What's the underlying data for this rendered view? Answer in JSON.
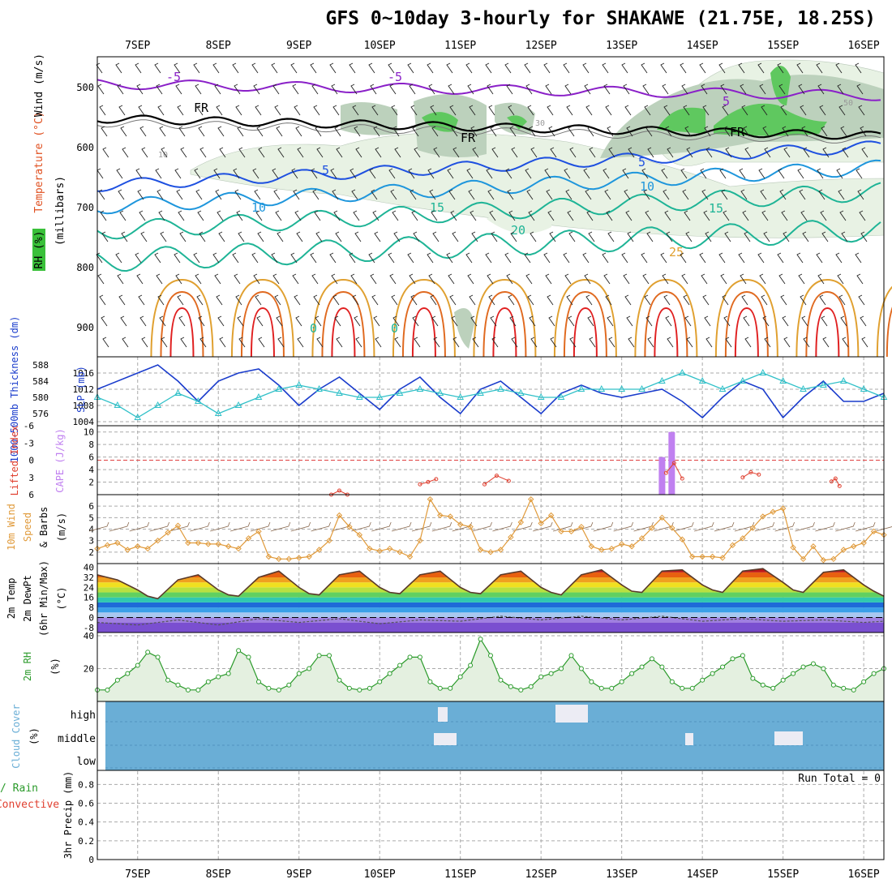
{
  "title": "GFS 0~10day 3-hourly for SHAKAWE (21.75E, 18.25S)",
  "date_labels": [
    "7SEP",
    "8SEP",
    "9SEP",
    "10SEP",
    "11SEP",
    "12SEP",
    "13SEP",
    "14SEP",
    "15SEP",
    "16SEP"
  ],
  "colors": {
    "rh_shade_light": "#e8f2e4",
    "rh_shade_mid": "#bcd1bc",
    "rh_shade_dark": "#8fc88f",
    "rh_shade_bright": "#5fc85f",
    "cloud_bg": "#6aaed6",
    "cloud_bar": "#ececf4",
    "cape_bar": "#c080f0",
    "lifted_index": "#e04030",
    "sfc_wind": "#e09a3a",
    "slp": "#1a3ccc",
    "thickness": "#30c0c8",
    "temp_minus5": "#8a20c8",
    "temp_0": "#000000",
    "temp_5": "#1e50e0",
    "temp_10": "#1e96dc",
    "temp_15": "#1eb496",
    "temp_20": "#1eb496",
    "temp_25": "#e0a030",
    "temp_30": "#e06a20",
    "temp_35": "#e02020",
    "rh_curve": "#2a9a2a"
  },
  "chart_data": [
    {
      "type": "area",
      "panel": "upper-air cross-section",
      "ylabel_parts": [
        "RH (%)",
        "Temperature (°C)",
        "Wind (m/s)"
      ],
      "yaxis_label": "(millibars)",
      "yticks": [
        500,
        600,
        700,
        800,
        900
      ],
      "ylim": [
        450,
        950
      ],
      "contour_labels": [
        "-5",
        "-5",
        "5",
        "FR",
        "FR",
        "FR",
        "5",
        "5",
        "10",
        "10",
        "15",
        "15",
        "20",
        "25",
        "0",
        "0"
      ],
      "rh_labels": [
        "10",
        "30",
        "50"
      ],
      "freezing_level_mb": [
        550,
        555,
        575,
        580,
        580,
        580,
        580,
        585,
        580,
        575,
        575,
        575,
        575,
        572,
        570,
        570,
        575
      ]
    },
    {
      "type": "line",
      "panel": "pressure",
      "ylabel_left": "1000-500mb Thickness (dm)",
      "ylabel_right": "SLP (mb)",
      "thickness_ticks": [
        576,
        580,
        584,
        588
      ],
      "slp_ticks": [
        1004,
        1008,
        1012,
        1016
      ],
      "series": [
        {
          "name": "SLP (mb)",
          "x_day": [
            6.5,
            7.0,
            7.25,
            7.5,
            7.75,
            8.0,
            8.25,
            8.5,
            8.75,
            9.0,
            9.25,
            9.5,
            9.75,
            10.0,
            10.25,
            10.5,
            10.75,
            11.0,
            11.25,
            11.5,
            11.75,
            12.0,
            12.25,
            12.5,
            12.75,
            13.0,
            13.25,
            13.5,
            13.75,
            14.0,
            14.25,
            14.5,
            14.75,
            15.0,
            15.25,
            15.5,
            15.75,
            16.0,
            16.25
          ],
          "values": [
            1012,
            1016,
            1018,
            1014,
            1009,
            1014,
            1016,
            1017,
            1013,
            1008,
            1012,
            1015,
            1011,
            1007,
            1012,
            1015,
            1010,
            1006,
            1012,
            1014,
            1010,
            1006,
            1011,
            1013,
            1011,
            1010,
            1011,
            1012,
            1009,
            1005,
            1010,
            1014,
            1012,
            1005,
            1010,
            1014,
            1009,
            1009,
            1011
          ]
        },
        {
          "name": "1000-500mb Thickness (dm)",
          "x_day": [
            6.5,
            6.75,
            7.0,
            7.25,
            7.5,
            7.75,
            8.0,
            8.25,
            8.5,
            8.75,
            9.0,
            9.25,
            9.5,
            9.75,
            10.0,
            10.25,
            10.5,
            10.75,
            11.0,
            11.25,
            11.5,
            11.75,
            12.0,
            12.25,
            12.5,
            12.75,
            13.0,
            13.25,
            13.5,
            13.75,
            14.0,
            14.25,
            14.5,
            14.75,
            15.0,
            15.25,
            15.5,
            15.75,
            16.0,
            16.25
          ],
          "values": [
            580,
            578,
            575,
            578,
            581,
            579,
            576,
            578,
            580,
            582,
            583,
            582,
            581,
            580,
            580,
            581,
            582,
            581,
            580,
            581,
            582,
            581,
            580,
            580,
            582,
            582,
            582,
            582,
            584,
            586,
            584,
            582,
            584,
            586,
            584,
            582,
            583,
            584,
            582,
            580
          ]
        }
      ]
    },
    {
      "type": "bar",
      "panel": "stability",
      "ylabel_left": "Lifted Index",
      "ylabel_right": "CAPE (J/kg)",
      "li_ticks": [
        6,
        3,
        0,
        -3,
        -6
      ],
      "cape_ticks": [
        2,
        4,
        6,
        8,
        10
      ],
      "series": [
        {
          "name": "CAPE (J/kg)",
          "x_day": [
            13.5,
            13.62
          ],
          "values": [
            6,
            10
          ]
        },
        {
          "name": "Lifted Index",
          "x_day": [
            9.4,
            9.5,
            9.6,
            10.5,
            10.6,
            10.7,
            11.3,
            11.45,
            11.6,
            13.55,
            13.65,
            13.75,
            14.5,
            14.6,
            14.7,
            15.6,
            15.65,
            15.7
          ],
          "values": [
            6,
            5.3,
            6,
            4.2,
            3.8,
            3.3,
            4.2,
            2.7,
            3.6,
            2.2,
            0.5,
            3.2,
            3.0,
            2.1,
            2.5,
            3.7,
            3.2,
            4.5
          ]
        }
      ]
    },
    {
      "type": "line",
      "panel": "surface-wind",
      "ylabel_parts": [
        "10m Wind",
        "Speed",
        "& Barbs",
        "(m/s)"
      ],
      "yticks": [
        2,
        3,
        4,
        5,
        6
      ],
      "series": [
        {
          "name": "10m Wind Speed",
          "x_day": [
            6.5,
            6.625,
            6.75,
            6.875,
            7.0,
            7.125,
            7.25,
            7.375,
            7.5,
            7.625,
            7.75,
            7.875,
            8.0,
            8.125,
            8.25,
            8.375,
            8.5,
            8.625,
            8.75,
            8.875,
            9.0,
            9.125,
            9.25,
            9.375,
            9.5,
            9.625,
            9.75,
            9.875,
            10.0,
            10.125,
            10.25,
            10.375,
            10.5,
            10.625,
            10.75,
            10.875,
            11.0,
            11.125,
            11.25,
            11.375,
            11.5,
            11.625,
            11.75,
            11.875,
            12.0,
            12.125,
            12.25,
            12.375,
            12.5,
            12.625,
            12.75,
            12.875,
            13.0,
            13.125,
            13.25,
            13.375,
            13.5,
            13.625,
            13.75,
            13.875,
            14.0,
            14.125,
            14.25,
            14.375,
            14.5,
            14.625,
            14.75,
            14.875,
            15.0,
            15.125,
            15.25,
            15.375,
            15.5,
            15.625,
            15.75,
            15.875,
            16.0,
            16.125,
            16.25
          ],
          "values": [
            2.3,
            2.6,
            2.8,
            2.2,
            2.5,
            2.3,
            3.0,
            3.7,
            4.3,
            2.8,
            2.8,
            2.7,
            2.7,
            2.5,
            2.3,
            3.2,
            3.8,
            1.6,
            1.4,
            1.4,
            1.5,
            1.6,
            2.2,
            3.0,
            5.2,
            4.2,
            3.5,
            2.3,
            2.1,
            2.3,
            2.0,
            1.6,
            3.0,
            6.6,
            5.2,
            5.1,
            4.4,
            4.2,
            2.2,
            2.0,
            2.2,
            3.3,
            4.6,
            6.6,
            4.5,
            5.2,
            3.8,
            3.8,
            4.2,
            2.5,
            2.2,
            2.3,
            2.7,
            2.5,
            3.2,
            4.1,
            5.0,
            4.1,
            3.1,
            1.6,
            1.6,
            1.6,
            1.5,
            2.6,
            3.2,
            4.1,
            5.1,
            5.5,
            5.8,
            2.4,
            1.4,
            2.5,
            1.3,
            1.4,
            2.2,
            2.5,
            2.8,
            3.8,
            3.5
          ]
        }
      ]
    },
    {
      "type": "area",
      "panel": "surface-temperature",
      "ylabel_parts": [
        "2m Temp",
        "2m DewPt",
        "(6hr Min/Max)",
        "(°C)"
      ],
      "yticks": [
        -8,
        0,
        8,
        16,
        24,
        32,
        40
      ],
      "series": [
        {
          "name": "2m Temp",
          "x_day": [
            6.5,
            6.75,
            7.0,
            7.125,
            7.25,
            7.5,
            7.75,
            8.0,
            8.125,
            8.25,
            8.5,
            8.75,
            9.0,
            9.125,
            9.25,
            9.5,
            9.75,
            10.0,
            10.125,
            10.25,
            10.5,
            10.75,
            11.0,
            11.125,
            11.25,
            11.5,
            11.75,
            12.0,
            12.125,
            12.25,
            12.5,
            12.75,
            13.0,
            13.125,
            13.25,
            13.5,
            13.75,
            14.0,
            14.125,
            14.25,
            14.5,
            14.75,
            15.0,
            15.125,
            15.25,
            15.5,
            15.75,
            16.0,
            16.125,
            16.25
          ],
          "values": [
            34,
            30,
            22,
            17,
            15,
            30,
            34,
            22,
            18,
            17,
            32,
            37,
            24,
            19,
            18,
            34,
            37,
            24,
            20,
            19,
            34,
            37,
            24,
            20,
            19,
            34,
            37,
            24,
            20,
            18,
            34,
            38,
            26,
            21,
            20,
            37,
            38,
            26,
            22,
            20,
            37,
            39,
            28,
            22,
            20,
            36,
            38,
            26,
            21,
            17
          ]
        },
        {
          "name": "2m DewPt",
          "x_day": [
            6.5,
            7.0,
            7.5,
            8.0,
            8.5,
            9.0,
            9.5,
            10.0,
            10.5,
            11.0,
            11.5,
            12.0,
            12.5,
            13.0,
            13.5,
            14.0,
            14.5,
            15.0,
            15.5,
            16.0,
            16.25
          ],
          "values": [
            -4,
            -6,
            -2,
            -6,
            -1,
            -4,
            -1,
            -5,
            -2,
            -3,
            1,
            -2,
            1,
            -2,
            1,
            -3,
            -1,
            -3,
            -2,
            -4,
            -3
          ]
        }
      ]
    },
    {
      "type": "area",
      "panel": "surface-rh",
      "ylabel_parts": [
        "2m RH",
        "(%)"
      ],
      "yticks": [
        20,
        40
      ],
      "series": [
        {
          "name": "2m RH",
          "x_day": [
            6.5,
            6.625,
            6.75,
            6.875,
            7.0,
            7.125,
            7.25,
            7.375,
            7.5,
            7.625,
            7.75,
            7.875,
            8.0,
            8.125,
            8.25,
            8.375,
            8.5,
            8.625,
            8.75,
            8.875,
            9.0,
            9.125,
            9.25,
            9.375,
            9.5,
            9.625,
            9.75,
            9.875,
            10.0,
            10.125,
            10.25,
            10.375,
            10.5,
            10.625,
            10.75,
            10.875,
            11.0,
            11.125,
            11.25,
            11.375,
            11.5,
            11.625,
            11.75,
            11.875,
            12.0,
            12.125,
            12.25,
            12.375,
            12.5,
            12.625,
            12.75,
            12.875,
            13.0,
            13.125,
            13.25,
            13.375,
            13.5,
            13.625,
            13.75,
            13.875,
            14.0,
            14.125,
            14.25,
            14.375,
            14.5,
            14.625,
            14.75,
            14.875,
            15.0,
            15.125,
            15.25,
            15.375,
            15.5,
            15.625,
            15.75,
            15.875,
            16.0,
            16.125,
            16.25
          ],
          "values": [
            7,
            7,
            13,
            17,
            22,
            30,
            27,
            13,
            10,
            7,
            7,
            12,
            15,
            17,
            31,
            27,
            12,
            8,
            7,
            10,
            17,
            20,
            28,
            28,
            13,
            8,
            7,
            8,
            12,
            17,
            22,
            27,
            27,
            12,
            8,
            8,
            15,
            22,
            38,
            28,
            13,
            9,
            7,
            9,
            15,
            17,
            20,
            28,
            20,
            12,
            8,
            8,
            12,
            17,
            21,
            26,
            21,
            12,
            8,
            8,
            13,
            17,
            21,
            26,
            28,
            14,
            10,
            8,
            13,
            17,
            21,
            23,
            20,
            10,
            8,
            7,
            12,
            17,
            20
          ]
        }
      ]
    },
    {
      "type": "bar",
      "panel": "cloud-cover",
      "ylabel_parts": [
        "Cloud Cover",
        "(%)"
      ],
      "level_labels": [
        "high",
        "middle",
        "low"
      ]
    },
    {
      "type": "line",
      "panel": "precipitation",
      "ylabel_parts": [
        "Total / Rain",
        "Convective",
        "3hr Precip (mm)"
      ],
      "yticks": [
        0,
        0.2,
        0.4,
        0.6,
        0.8
      ],
      "run_total_label": "Run Total = 0",
      "series": [
        {
          "name": "3hr Precip",
          "values": [
            0,
            0,
            0,
            0,
            0,
            0,
            0,
            0,
            0,
            0
          ]
        }
      ]
    }
  ]
}
